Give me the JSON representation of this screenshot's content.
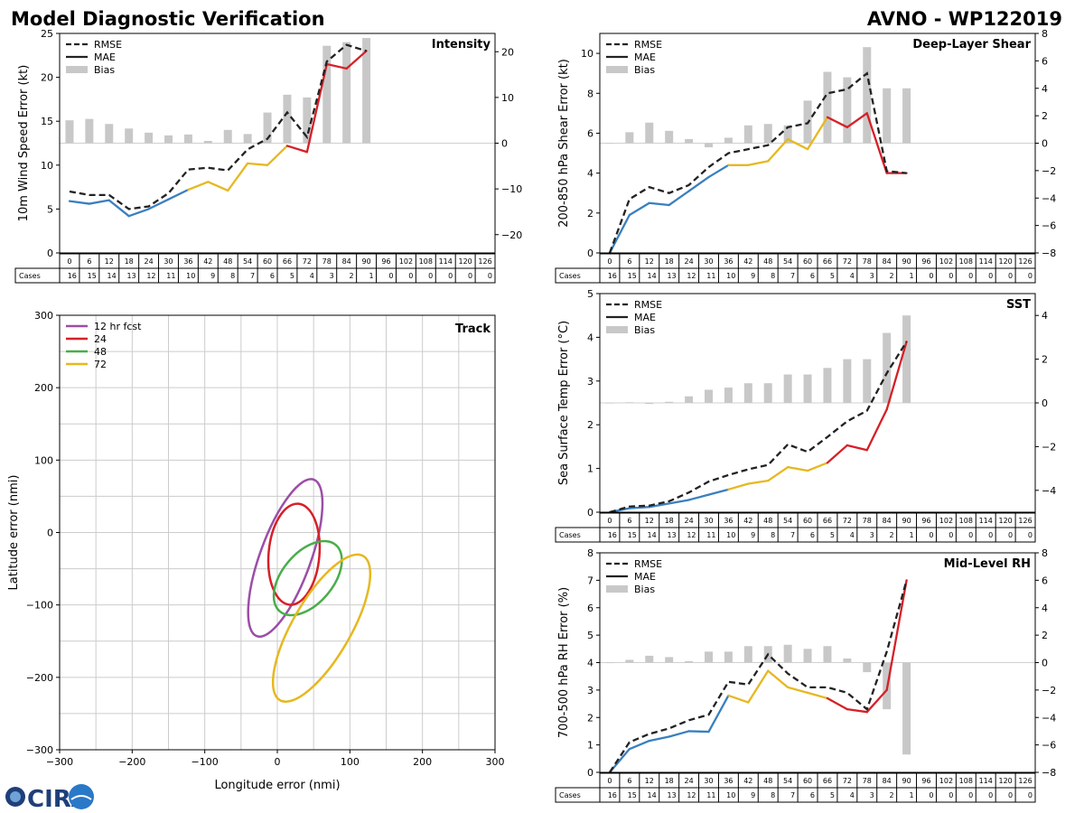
{
  "header": {
    "title": "Model Diagnostic Verification",
    "model_storm": "AVNO - WP122019"
  },
  "logo": {
    "text": "CIRA"
  },
  "colors": {
    "rmse": "#222222",
    "early": "#3a7fbf",
    "mid": "#e6b820",
    "late": "#d62027",
    "bias": "#c8c8c8",
    "grid": "#cccccc",
    "zero": "#d0d0d0",
    "track_12": "#9b4ea6",
    "track_24": "#d62027",
    "track_48": "#4aad4a",
    "track_72": "#e6b820"
  },
  "legend_labels": {
    "rmse": "RMSE",
    "mae": "MAE",
    "bias": "Bias"
  },
  "table": {
    "hours": [
      "0",
      "6",
      "12",
      "18",
      "24",
      "30",
      "36",
      "42",
      "48",
      "54",
      "60",
      "66",
      "72",
      "78",
      "84",
      "90",
      "96",
      "102",
      "108",
      "114",
      "120",
      "126"
    ],
    "cases_label": "Cases",
    "cases": [
      "16",
      "15",
      "14",
      "13",
      "12",
      "11",
      "10",
      "9",
      "8",
      "7",
      "6",
      "5",
      "4",
      "3",
      "2",
      "1",
      "0",
      "0",
      "0",
      "0",
      "0",
      "0"
    ]
  },
  "chart_data": [
    {
      "id": "intensity",
      "type": "line",
      "title": "Intensity",
      "ylabel": "10m Wind Speed Error (kt)",
      "ylim": [
        0,
        25
      ],
      "yticks": [
        "0",
        "5",
        "10",
        "15",
        "20",
        "25"
      ],
      "y2lim": [
        -24,
        24
      ],
      "y2ticks": [
        "−20",
        "−10",
        "0",
        "10",
        "20"
      ],
      "x": [
        0,
        6,
        12,
        18,
        24,
        30,
        36,
        42,
        48,
        54,
        60,
        66,
        72,
        78,
        84,
        90
      ],
      "rmse": [
        7.0,
        6.6,
        6.6,
        5.0,
        5.3,
        6.8,
        9.5,
        9.7,
        9.4,
        11.8,
        13.0,
        16.0,
        13.2,
        21.8,
        23.7,
        23.0
      ],
      "mae": [
        5.9,
        5.6,
        6.0,
        4.2,
        5.0,
        6.1,
        7.2,
        8.1,
        7.1,
        10.2,
        10.0,
        12.2,
        11.5,
        21.5,
        21.0,
        23.0
      ],
      "bias": [
        5,
        5.3,
        4.2,
        3.2,
        2.3,
        1.7,
        1.9,
        0.5,
        2.9,
        2.0,
        6.7,
        10.6,
        10.0,
        21.3,
        22.1,
        23.0
      ]
    },
    {
      "id": "shear",
      "type": "line",
      "title": "Deep-Layer Shear",
      "ylabel": "200-850 hPa Shear Error (kt)",
      "ylim": [
        0,
        11
      ],
      "yticks": [
        "0",
        "2",
        "4",
        "6",
        "8",
        "10"
      ],
      "y2lim": [
        -8,
        8
      ],
      "y2ticks": [
        "−8",
        "−6",
        "−4",
        "−2",
        "0",
        "2",
        "4",
        "6",
        "8"
      ],
      "x": [
        0,
        6,
        12,
        18,
        24,
        30,
        36,
        42,
        48,
        54,
        60,
        66,
        72,
        78,
        84,
        90
      ],
      "rmse": [
        0,
        2.7,
        3.3,
        3.0,
        3.4,
        4.3,
        5.0,
        5.2,
        5.4,
        6.3,
        6.5,
        8.0,
        8.2,
        9.0,
        4.1,
        4.0
      ],
      "mae": [
        0,
        1.9,
        2.5,
        2.4,
        3.1,
        3.8,
        4.4,
        4.4,
        4.6,
        5.7,
        5.2,
        6.8,
        6.3,
        7.0,
        4.0,
        4.0
      ],
      "bias": [
        0,
        0.8,
        1.5,
        0.9,
        0.3,
        -0.3,
        0.4,
        1.3,
        1.4,
        1.3,
        3.1,
        5.2,
        4.8,
        7.0,
        4.0,
        4.0
      ]
    },
    {
      "id": "sst",
      "type": "line",
      "title": "SST",
      "ylabel": "Sea Surface Temp Error (°C)",
      "ylim": [
        0,
        5
      ],
      "yticks": [
        "0",
        "1",
        "2",
        "3",
        "4",
        "5"
      ],
      "y2lim": [
        -5,
        5
      ],
      "y2ticks": [
        "−4",
        "−2",
        "0",
        "2",
        "4"
      ],
      "x": [
        0,
        6,
        12,
        18,
        24,
        30,
        36,
        42,
        48,
        54,
        60,
        66,
        72,
        78,
        84,
        90
      ],
      "rmse": [
        0,
        0.13,
        0.15,
        0.25,
        0.45,
        0.7,
        0.85,
        0.98,
        1.08,
        1.55,
        1.38,
        1.72,
        2.08,
        2.32,
        3.18,
        3.9
      ],
      "mae": [
        0,
        0.09,
        0.12,
        0.2,
        0.28,
        0.4,
        0.52,
        0.65,
        0.72,
        1.03,
        0.95,
        1.13,
        1.53,
        1.42,
        2.35,
        3.9
      ],
      "bias": [
        0,
        0.03,
        -0.05,
        0.05,
        0.3,
        0.6,
        0.7,
        0.9,
        0.9,
        1.3,
        1.3,
        1.6,
        2.0,
        2.0,
        3.2,
        4.0
      ]
    },
    {
      "id": "rh",
      "type": "line",
      "title": "Mid-Level RH",
      "ylabel": "700-500 hPa RH Error (%)",
      "ylim": [
        0,
        8
      ],
      "yticks": [
        "0",
        "1",
        "2",
        "3",
        "4",
        "5",
        "6",
        "7",
        "8"
      ],
      "y2lim": [
        -8,
        8
      ],
      "y2ticks": [
        "−8",
        "−6",
        "−4",
        "−2",
        "0",
        "2",
        "4",
        "6",
        "8"
      ],
      "x": [
        0,
        6,
        12,
        18,
        24,
        30,
        36,
        42,
        48,
        54,
        60,
        66,
        72,
        78,
        84,
        90
      ],
      "rmse": [
        0,
        1.1,
        1.4,
        1.6,
        1.9,
        2.1,
        3.3,
        3.2,
        4.3,
        3.6,
        3.1,
        3.1,
        2.9,
        2.3,
        4.4,
        7.0
      ],
      "mae": [
        0,
        0.85,
        1.15,
        1.3,
        1.5,
        1.48,
        2.8,
        2.55,
        3.7,
        3.1,
        2.9,
        2.7,
        2.3,
        2.2,
        3.0,
        7.0
      ],
      "bias": [
        0,
        0.2,
        0.5,
        0.4,
        0.1,
        0.8,
        0.8,
        1.2,
        1.2,
        1.3,
        1.0,
        1.2,
        0.3,
        -0.7,
        -3.4,
        -6.7
      ]
    },
    {
      "id": "track",
      "type": "scatter",
      "title": "Track",
      "xlabel": "Longitude error (nmi)",
      "ylabel": "Latitude error (nmi)",
      "xlim": [
        -300,
        300
      ],
      "ylim": [
        -300,
        300
      ],
      "xticks": [
        "−300",
        "−200",
        "−100",
        "0",
        "100",
        "200",
        "300"
      ],
      "yticks": [
        "−300",
        "−200",
        "−100",
        "0",
        "100",
        "200",
        "300"
      ],
      "series": [
        {
          "name": "12 hr fcst",
          "center": [
            11,
            -35
          ],
          "semi_axes": [
            35,
            115
          ],
          "tilt_deg": -20
        },
        {
          "name": "24",
          "center": [
            23,
            -30
          ],
          "semi_axes": [
            35,
            70
          ],
          "tilt_deg": -5
        },
        {
          "name": "48",
          "center": [
            42,
            -63
          ],
          "semi_axes": [
            35,
            60
          ],
          "tilt_deg": -40
        },
        {
          "name": "72",
          "center": [
            61,
            -132
          ],
          "semi_axes": [
            40,
            115
          ],
          "tilt_deg": -30
        }
      ]
    }
  ]
}
